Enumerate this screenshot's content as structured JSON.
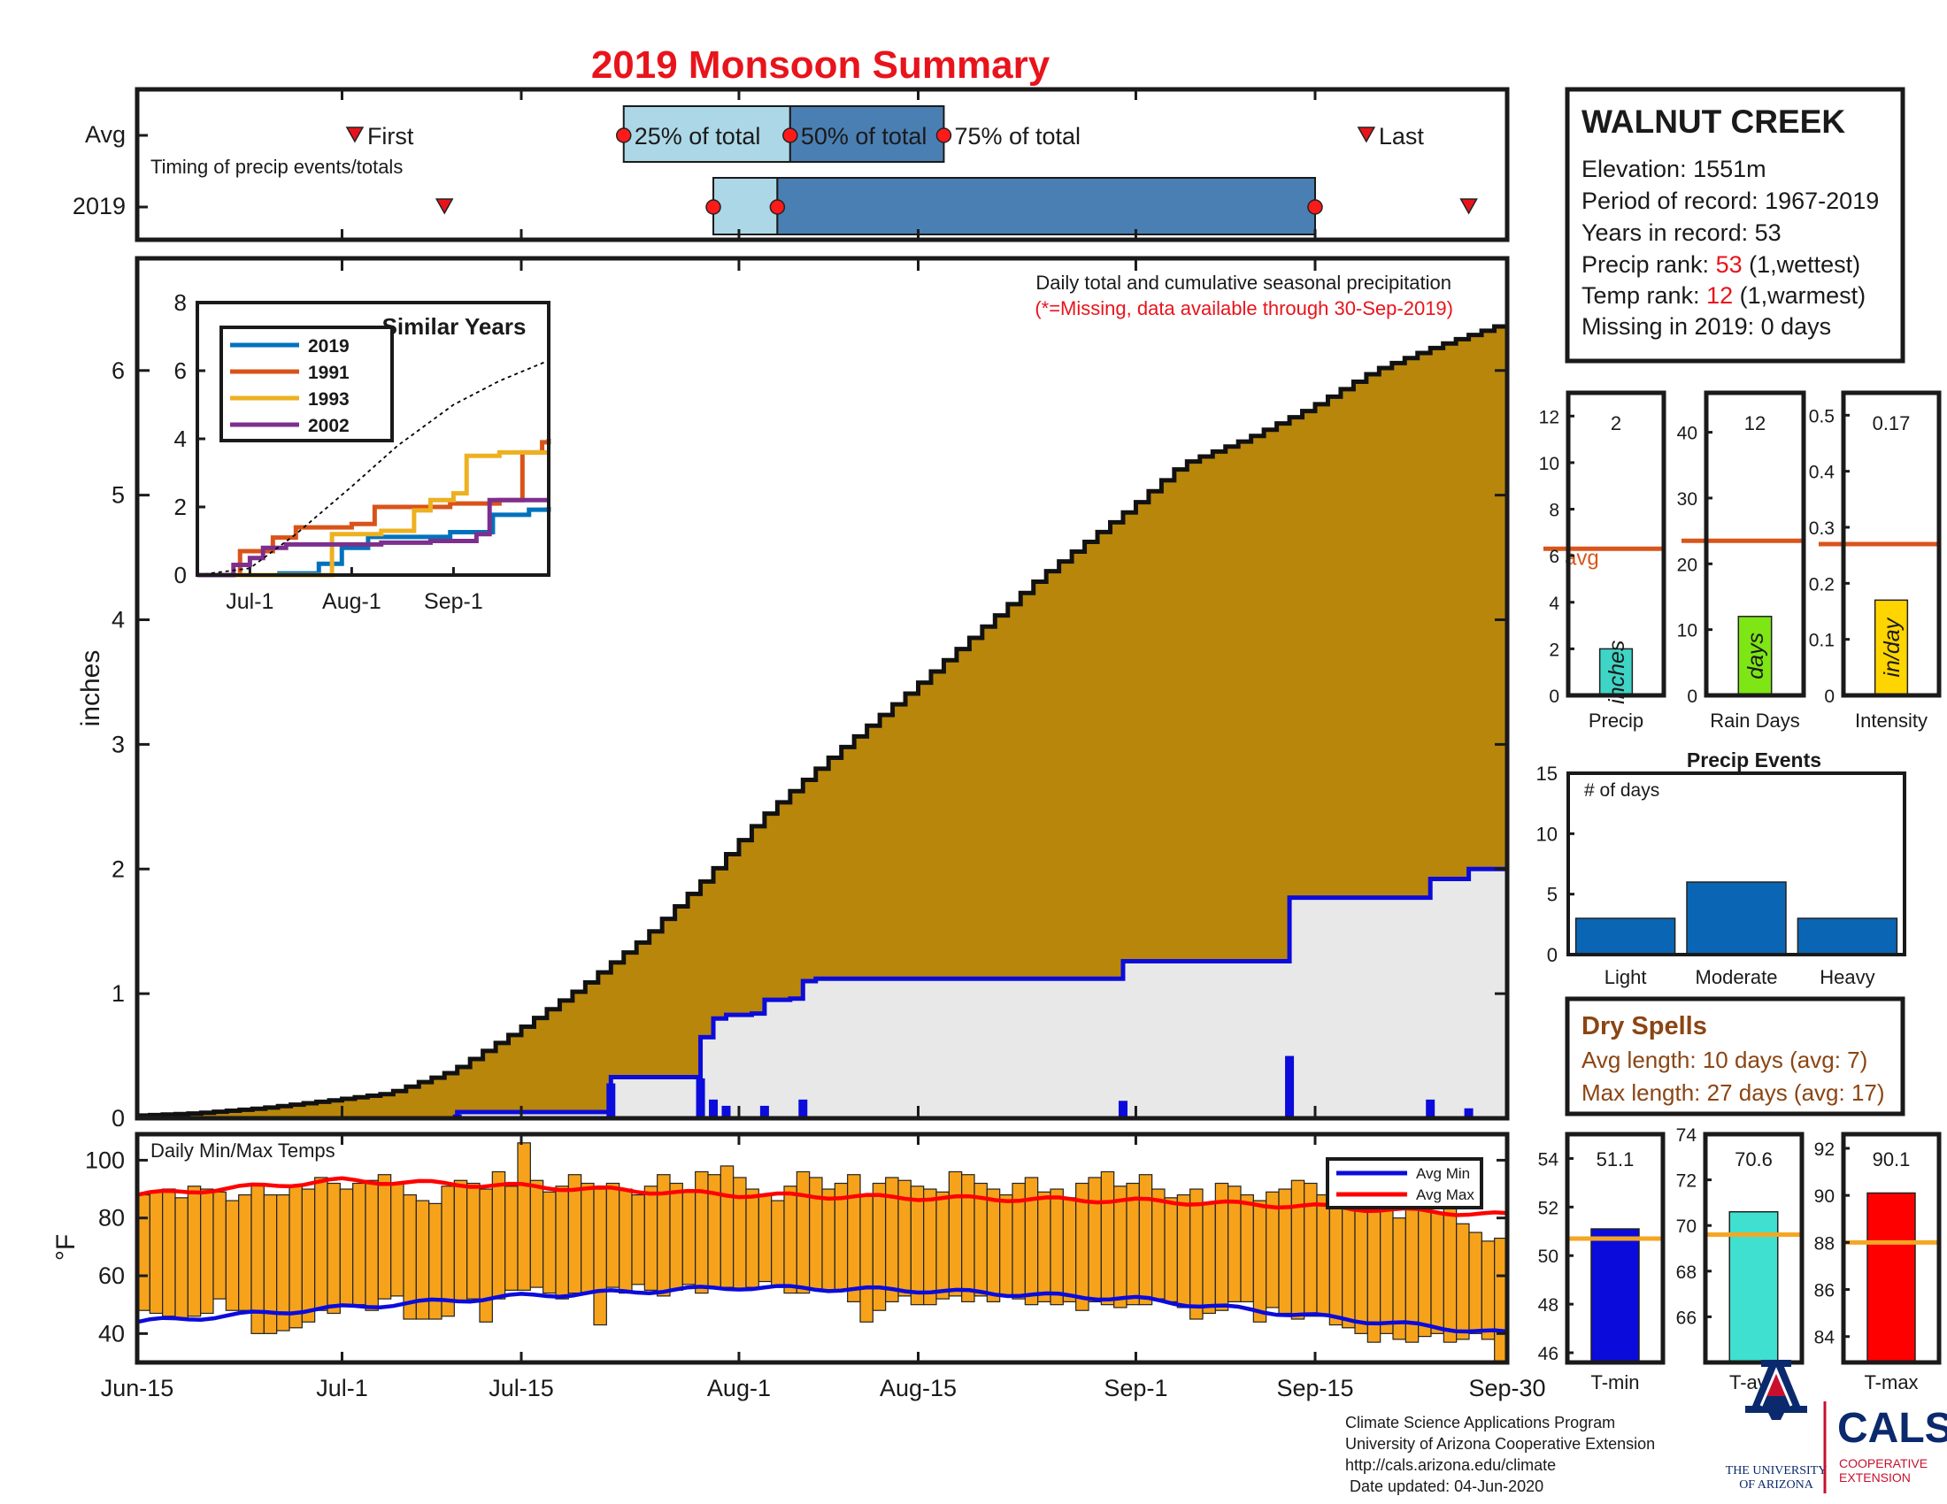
{
  "title": "2019 Monsoon Summary",
  "colors": {
    "title_red": "#e8141c",
    "light_blue": "#acd7e6",
    "steel_blue": "#4a7fb3",
    "brown": "#b8860b",
    "light_gray": "#e8e8e8",
    "blue_line": "#0b0bdc",
    "orange_bar": "#f6a31b",
    "avg_orange_line": "#d9551c",
    "brand_blue": "#0b2a6d",
    "brand_red": "#c8102e"
  },
  "timing": {
    "row_labels": [
      "Avg",
      "2019"
    ],
    "caption": "Timing of precip events/totals",
    "avg_labels": {
      "first": "First",
      "p25": "25% of total",
      "p50": "50% of total",
      "p75": "75% of total",
      "last": "Last"
    },
    "avg": {
      "first": "Jul-2",
      "p25": "Jul-23",
      "p50": "Aug-5",
      "p75": "Aug-17",
      "last": "Sep-19"
    },
    "y2019": {
      "first": "Jul-9",
      "p25": "Jul-30",
      "p50": "Aug-4",
      "p75": "Sep-15",
      "last": "Sep-27"
    }
  },
  "station": {
    "name": "WALNUT CREEK",
    "elevation": "Elevation: 1551m",
    "period": "Period of record: 1967-2019",
    "years": "Years in record: 53",
    "precip_rank_prefix": "Precip rank: ",
    "precip_rank_value": "53",
    "precip_rank_suffix": " (1,wettest)",
    "temp_rank_prefix": "Temp rank: ",
    "temp_rank_value": "12",
    "temp_rank_suffix": " (1,warmest)",
    "missing": "Missing in 2019: 0 days"
  },
  "main_chart": {
    "ylabel": "inches",
    "annotation": "Daily total and cumulative seasonal precipitation",
    "annotation_missing": "(*=Missing, data available through 30-Sep-2019)",
    "x_ticks": [
      "Jun-15",
      "Jul-1",
      "Jul-15",
      "Aug-1",
      "Aug-15",
      "Sep-1",
      "Sep-15",
      "Sep-30"
    ]
  },
  "inset": {
    "title": "Similar Years",
    "x_ticks": [
      "Jul-1",
      "Aug-1",
      "Sep-1"
    ]
  },
  "temp_chart": {
    "label": "Daily Min/Max Temps",
    "ylabel": "°F",
    "legend": [
      "Avg Min",
      "Avg Max"
    ]
  },
  "small_bars": {
    "precip": {
      "label": "Precip",
      "unit": "inches",
      "value_text": "2",
      "value": 2.0,
      "avg": 6.3,
      "avg_label": "avg",
      "ylim": [
        0,
        13
      ],
      "yticks": [
        0,
        2,
        4,
        6,
        8,
        10,
        12
      ],
      "color": "#3fd5c6"
    },
    "rain_days": {
      "label": "Rain Days",
      "unit": "days",
      "value_text": "12",
      "value": 12,
      "avg": 23.5,
      "ylim": [
        0,
        46
      ],
      "yticks": [
        0,
        10,
        20,
        30,
        40
      ],
      "color": "#7ee614"
    },
    "intensity": {
      "label": "Intensity",
      "unit": "in/day",
      "value_text": "0.17",
      "value": 0.17,
      "avg": 0.27,
      "ylim": [
        0,
        0.54
      ],
      "yticks": [
        0,
        0.1,
        0.2,
        0.3,
        0.4,
        0.5
      ],
      "color": "#ffd500"
    }
  },
  "precip_events": {
    "title": "Precip Events",
    "ylabel_text": "# of days",
    "categories": [
      "Light",
      "Moderate",
      "Heavy"
    ],
    "values": [
      3,
      6,
      3
    ],
    "ylim": [
      0,
      15
    ],
    "yticks": [
      0,
      5,
      10,
      15
    ]
  },
  "dry_spells": {
    "title": "Dry Spells",
    "avg_length": "Avg length: 10 days (avg: 7)",
    "max_length": "Max length: 27 days (avg: 17)"
  },
  "temp_bars": {
    "tmin": {
      "label": "T-min",
      "value_text": "51.1",
      "value": 51.1,
      "avg": 50.7,
      "ylim": [
        45.6,
        55
      ],
      "yticks": [
        46,
        48,
        50,
        52,
        54
      ],
      "color": "#0b0bdc"
    },
    "tavg": {
      "label": "T-avg",
      "value_text": "70.6",
      "value": 70.6,
      "avg": 69.6,
      "ylim": [
        64,
        74
      ],
      "yticks": [
        66,
        68,
        70,
        72,
        74
      ],
      "color": "#3fe0d0"
    },
    "tmax": {
      "label": "T-max",
      "value_text": "90.1",
      "value": 90.1,
      "avg": 88.0,
      "ylim": [
        82.9,
        92.6
      ],
      "yticks": [
        84,
        86,
        88,
        90,
        92
      ],
      "color": "#ff0000"
    }
  },
  "footer": {
    "line1": "Climate Science Applications Program",
    "line2": "University of Arizona Cooperative Extension",
    "line3": "http://cals.arizona.edu/climate",
    "line4": " Date updated: 04-Jun-2020",
    "ua_line1": "THE UNIVERSITY",
    "ua_line2": "OF ARIZONA",
    "cals": "CALS",
    "coop1": "COOPERATIVE",
    "coop2": "EXTENSION"
  },
  "chart_data": [
    {
      "type": "area",
      "title": "Daily total and cumulative seasonal precipitation",
      "xlabel": "",
      "ylabel": "inches",
      "x_range": [
        "Jun-15",
        "Sep-30"
      ],
      "ylim": [
        0,
        6.9
      ],
      "yticks": [
        0,
        1,
        2,
        3,
        4,
        5,
        6
      ],
      "series": [
        {
          "kind": "average cumulative",
          "points": [
            [
              "Jun-15",
              0.02
            ],
            [
              "Jun-20",
              0.04
            ],
            [
              "Jun-25",
              0.08
            ],
            [
              "Jul-1",
              0.15
            ],
            [
              "Jul-5",
              0.2
            ],
            [
              "Jul-10",
              0.38
            ],
            [
              "Jul-15",
              0.7
            ],
            [
              "Jul-20",
              1.05
            ],
            [
              "Jul-25",
              1.45
            ],
            [
              "Jul-30",
              1.95
            ],
            [
              "Aug-3",
              2.4
            ],
            [
              "Aug-8",
              2.85
            ],
            [
              "Aug-15",
              3.45
            ],
            [
              "Aug-20",
              3.9
            ],
            [
              "Aug-25",
              4.35
            ],
            [
              "Sep-1",
              4.9
            ],
            [
              "Sep-5",
              5.25
            ],
            [
              "Sep-10",
              5.45
            ],
            [
              "Sep-15",
              5.7
            ],
            [
              "Sep-20",
              6.0
            ],
            [
              "Sep-25",
              6.2
            ],
            [
              "Sep-30",
              6.37
            ]
          ]
        },
        {
          "kind": "2019 cumulative",
          "points": [
            [
              "Jun-15",
              0
            ],
            [
              "Jul-10",
              0.05
            ],
            [
              "Jul-21",
              0.05
            ],
            [
              "Jul-22",
              0.33
            ],
            [
              "Jul-29",
              0.33
            ],
            [
              "Jul-29",
              0.65
            ],
            [
              "Jul-30",
              0.8
            ],
            [
              "Jul-31",
              0.83
            ],
            [
              "Aug-2",
              0.84
            ],
            [
              "Aug-3",
              0.95
            ],
            [
              "Aug-5",
              0.96
            ],
            [
              "Aug-6",
              1.1
            ],
            [
              "Aug-7",
              1.12
            ],
            [
              "Aug-31",
              1.12
            ],
            [
              "Aug-31",
              1.26
            ],
            [
              "Sep-13",
              1.26
            ],
            [
              "Sep-13",
              1.77
            ],
            [
              "Sep-24",
              1.77
            ],
            [
              "Sep-24",
              1.92
            ],
            [
              "Sep-27",
              1.92
            ],
            [
              "Sep-27",
              2.0
            ],
            [
              "Sep-30",
              2.0
            ]
          ]
        },
        {
          "kind": "2019 daily",
          "points": [
            [
              "Jul-10",
              0.03
            ],
            [
              "Jul-22",
              0.28
            ],
            [
              "Jul-29",
              0.32
            ],
            [
              "Jul-30",
              0.15
            ],
            [
              "Jul-31",
              0.1
            ],
            [
              "Aug-3",
              0.1
            ],
            [
              "Aug-6",
              0.15
            ],
            [
              "Aug-31",
              0.14
            ],
            [
              "Sep-13",
              0.5
            ],
            [
              "Sep-24",
              0.15
            ],
            [
              "Sep-27",
              0.08
            ]
          ]
        }
      ]
    },
    {
      "type": "line",
      "title": "Similar Years",
      "x_ticks": [
        "Jul-1",
        "Aug-1",
        "Sep-1"
      ],
      "ylim": [
        0,
        8
      ],
      "yticks": [
        0,
        2,
        4,
        6,
        8
      ],
      "series": [
        {
          "name": "2019",
          "color": "#0072bd",
          "points": [
            [
              "Jun-15",
              0
            ],
            [
              "Jul-10",
              0.05
            ],
            [
              "Jul-22",
              0.33
            ],
            [
              "Jul-29",
              0.8
            ],
            [
              "Aug-6",
              1.12
            ],
            [
              "Aug-31",
              1.26
            ],
            [
              "Sep-13",
              1.77
            ],
            [
              "Sep-24",
              1.92
            ],
            [
              "Sep-30",
              2.0
            ]
          ]
        },
        {
          "name": "1991",
          "color": "#d95319",
          "points": [
            [
              "Jun-15",
              0
            ],
            [
              "Jun-28",
              0
            ],
            [
              "Jun-28",
              0.7
            ],
            [
              "Jul-8",
              0.7
            ],
            [
              "Jul-8",
              1.1
            ],
            [
              "Jul-15",
              1.4
            ],
            [
              "Aug-1",
              1.5
            ],
            [
              "Aug-8",
              2.0
            ],
            [
              "Aug-31",
              2.1
            ],
            [
              "Sep-15",
              2.2
            ],
            [
              "Sep-22",
              3.6
            ],
            [
              "Sep-28",
              3.9
            ],
            [
              "Sep-30",
              4.0
            ]
          ]
        },
        {
          "name": "1993",
          "color": "#edb120",
          "points": [
            [
              "Jun-15",
              0
            ],
            [
              "Jul-25",
              0
            ],
            [
              "Jul-26",
              1.2
            ],
            [
              "Aug-10",
              1.3
            ],
            [
              "Aug-20",
              1.9
            ],
            [
              "Aug-25",
              2.2
            ],
            [
              "Sep-1",
              2.4
            ],
            [
              "Sep-5",
              3.5
            ],
            [
              "Sep-15",
              3.6
            ],
            [
              "Sep-30",
              3.6
            ]
          ]
        },
        {
          "name": "2002",
          "color": "#7e2f8e",
          "points": [
            [
              "Jun-15",
              0
            ],
            [
              "Jun-25",
              0
            ],
            [
              "Jun-26",
              0.3
            ],
            [
              "Jul-1",
              0.5
            ],
            [
              "Jul-5",
              0.8
            ],
            [
              "Jul-12",
              0.9
            ],
            [
              "Aug-10",
              0.95
            ],
            [
              "Aug-25",
              1.0
            ],
            [
              "Sep-8",
              1.2
            ],
            [
              "Sep-12",
              2.2
            ],
            [
              "Sep-30",
              2.2
            ]
          ]
        },
        {
          "name": "",
          "kind": "average",
          "color": "#000000",
          "points": [
            [
              "Jun-15",
              0
            ],
            [
              "Jul-1",
              0.2
            ],
            [
              "Jul-15",
              1.2
            ],
            [
              "Aug-1",
              2.6
            ],
            [
              "Aug-15",
              3.8
            ],
            [
              "Sep-1",
              5.0
            ],
            [
              "Sep-15",
              5.7
            ],
            [
              "Sep-30",
              6.3
            ]
          ]
        }
      ]
    },
    {
      "type": "bar",
      "title": "Daily Min/Max Temps",
      "ylabel": "°F",
      "ylim": [
        30,
        109
      ],
      "yticks": [
        40,
        60,
        80,
        100
      ],
      "x_range": [
        "Jun-15",
        "Sep-30"
      ],
      "series": [
        {
          "name": "Avg Min",
          "color": "#0b0bdc",
          "points": [
            [
              "Jun-15",
              44
            ],
            [
              "Jul-1",
              49
            ],
            [
              "Jul-15",
              53
            ],
            [
              "Aug-1",
              56
            ],
            [
              "Aug-15",
              55
            ],
            [
              "Sep-1",
              52
            ],
            [
              "Sep-15",
              46
            ],
            [
              "Sep-30",
              40
            ]
          ]
        },
        {
          "name": "Avg Max",
          "color": "#ff0000",
          "points": [
            [
              "Jun-15",
              88
            ],
            [
              "Jul-1",
              93
            ],
            [
              "Jul-15",
              91
            ],
            [
              "Aug-1",
              88
            ],
            [
              "Aug-15",
              87
            ],
            [
              "Sep-1",
              86
            ],
            [
              "Sep-15",
              84
            ],
            [
              "Sep-30",
              81
            ]
          ]
        }
      ],
      "daily_range": {
        "max": [
          88,
          89,
          90,
          87,
          91,
          90,
          89,
          86,
          88,
          92,
          88,
          88,
          91,
          90,
          94,
          92,
          90,
          92,
          93,
          95,
          92,
          88,
          86,
          85,
          91,
          93,
          92,
          90,
          96,
          91,
          106,
          93,
          89,
          91,
          95,
          92,
          90,
          92,
          90,
          88,
          91,
          95,
          92,
          89,
          96,
          95,
          98,
          94,
          90,
          88,
          86,
          91,
          96,
          94,
          90,
          92,
          95,
          88,
          92,
          94,
          93,
          91,
          90,
          89,
          96,
          95,
          92,
          90,
          88,
          92,
          94,
          89,
          90,
          87,
          92,
          94,
          96,
          91,
          92,
          95,
          90,
          87,
          88,
          90,
          85,
          92,
          91,
          88,
          86,
          89,
          90,
          93,
          92,
          88,
          85,
          84,
          86,
          89,
          83,
          80,
          88,
          84,
          82,
          84,
          78,
          75,
          72,
          73
        ],
        "min": [
          48,
          47,
          46,
          45,
          46,
          47,
          52,
          48,
          48,
          40,
          40,
          41,
          42,
          44,
          48,
          47,
          50,
          50,
          48,
          52,
          53,
          45,
          45,
          45,
          46,
          51,
          52,
          44,
          52,
          55,
          55,
          56,
          54,
          52,
          54,
          54,
          43,
          56,
          54,
          57,
          55,
          53,
          55,
          57,
          54,
          56,
          56,
          55,
          56,
          58,
          56,
          54,
          54,
          55,
          55,
          55,
          51,
          44,
          48,
          51,
          53,
          50,
          50,
          52,
          53,
          51,
          53,
          51,
          53,
          52,
          50,
          51,
          50,
          51,
          48,
          51,
          50,
          49,
          50,
          50,
          52,
          51,
          49,
          45,
          47,
          48,
          51,
          51,
          44,
          49,
          47,
          45,
          46,
          46,
          43,
          42,
          40,
          37,
          40,
          38,
          37,
          39,
          40,
          37,
          38,
          40,
          38,
          28
        ]
      }
    },
    {
      "type": "bar",
      "title": "Precip Events",
      "categories": [
        "Light",
        "Moderate",
        "Heavy"
      ],
      "values": [
        3,
        6,
        3
      ],
      "ylim": [
        0,
        15
      ]
    }
  ]
}
